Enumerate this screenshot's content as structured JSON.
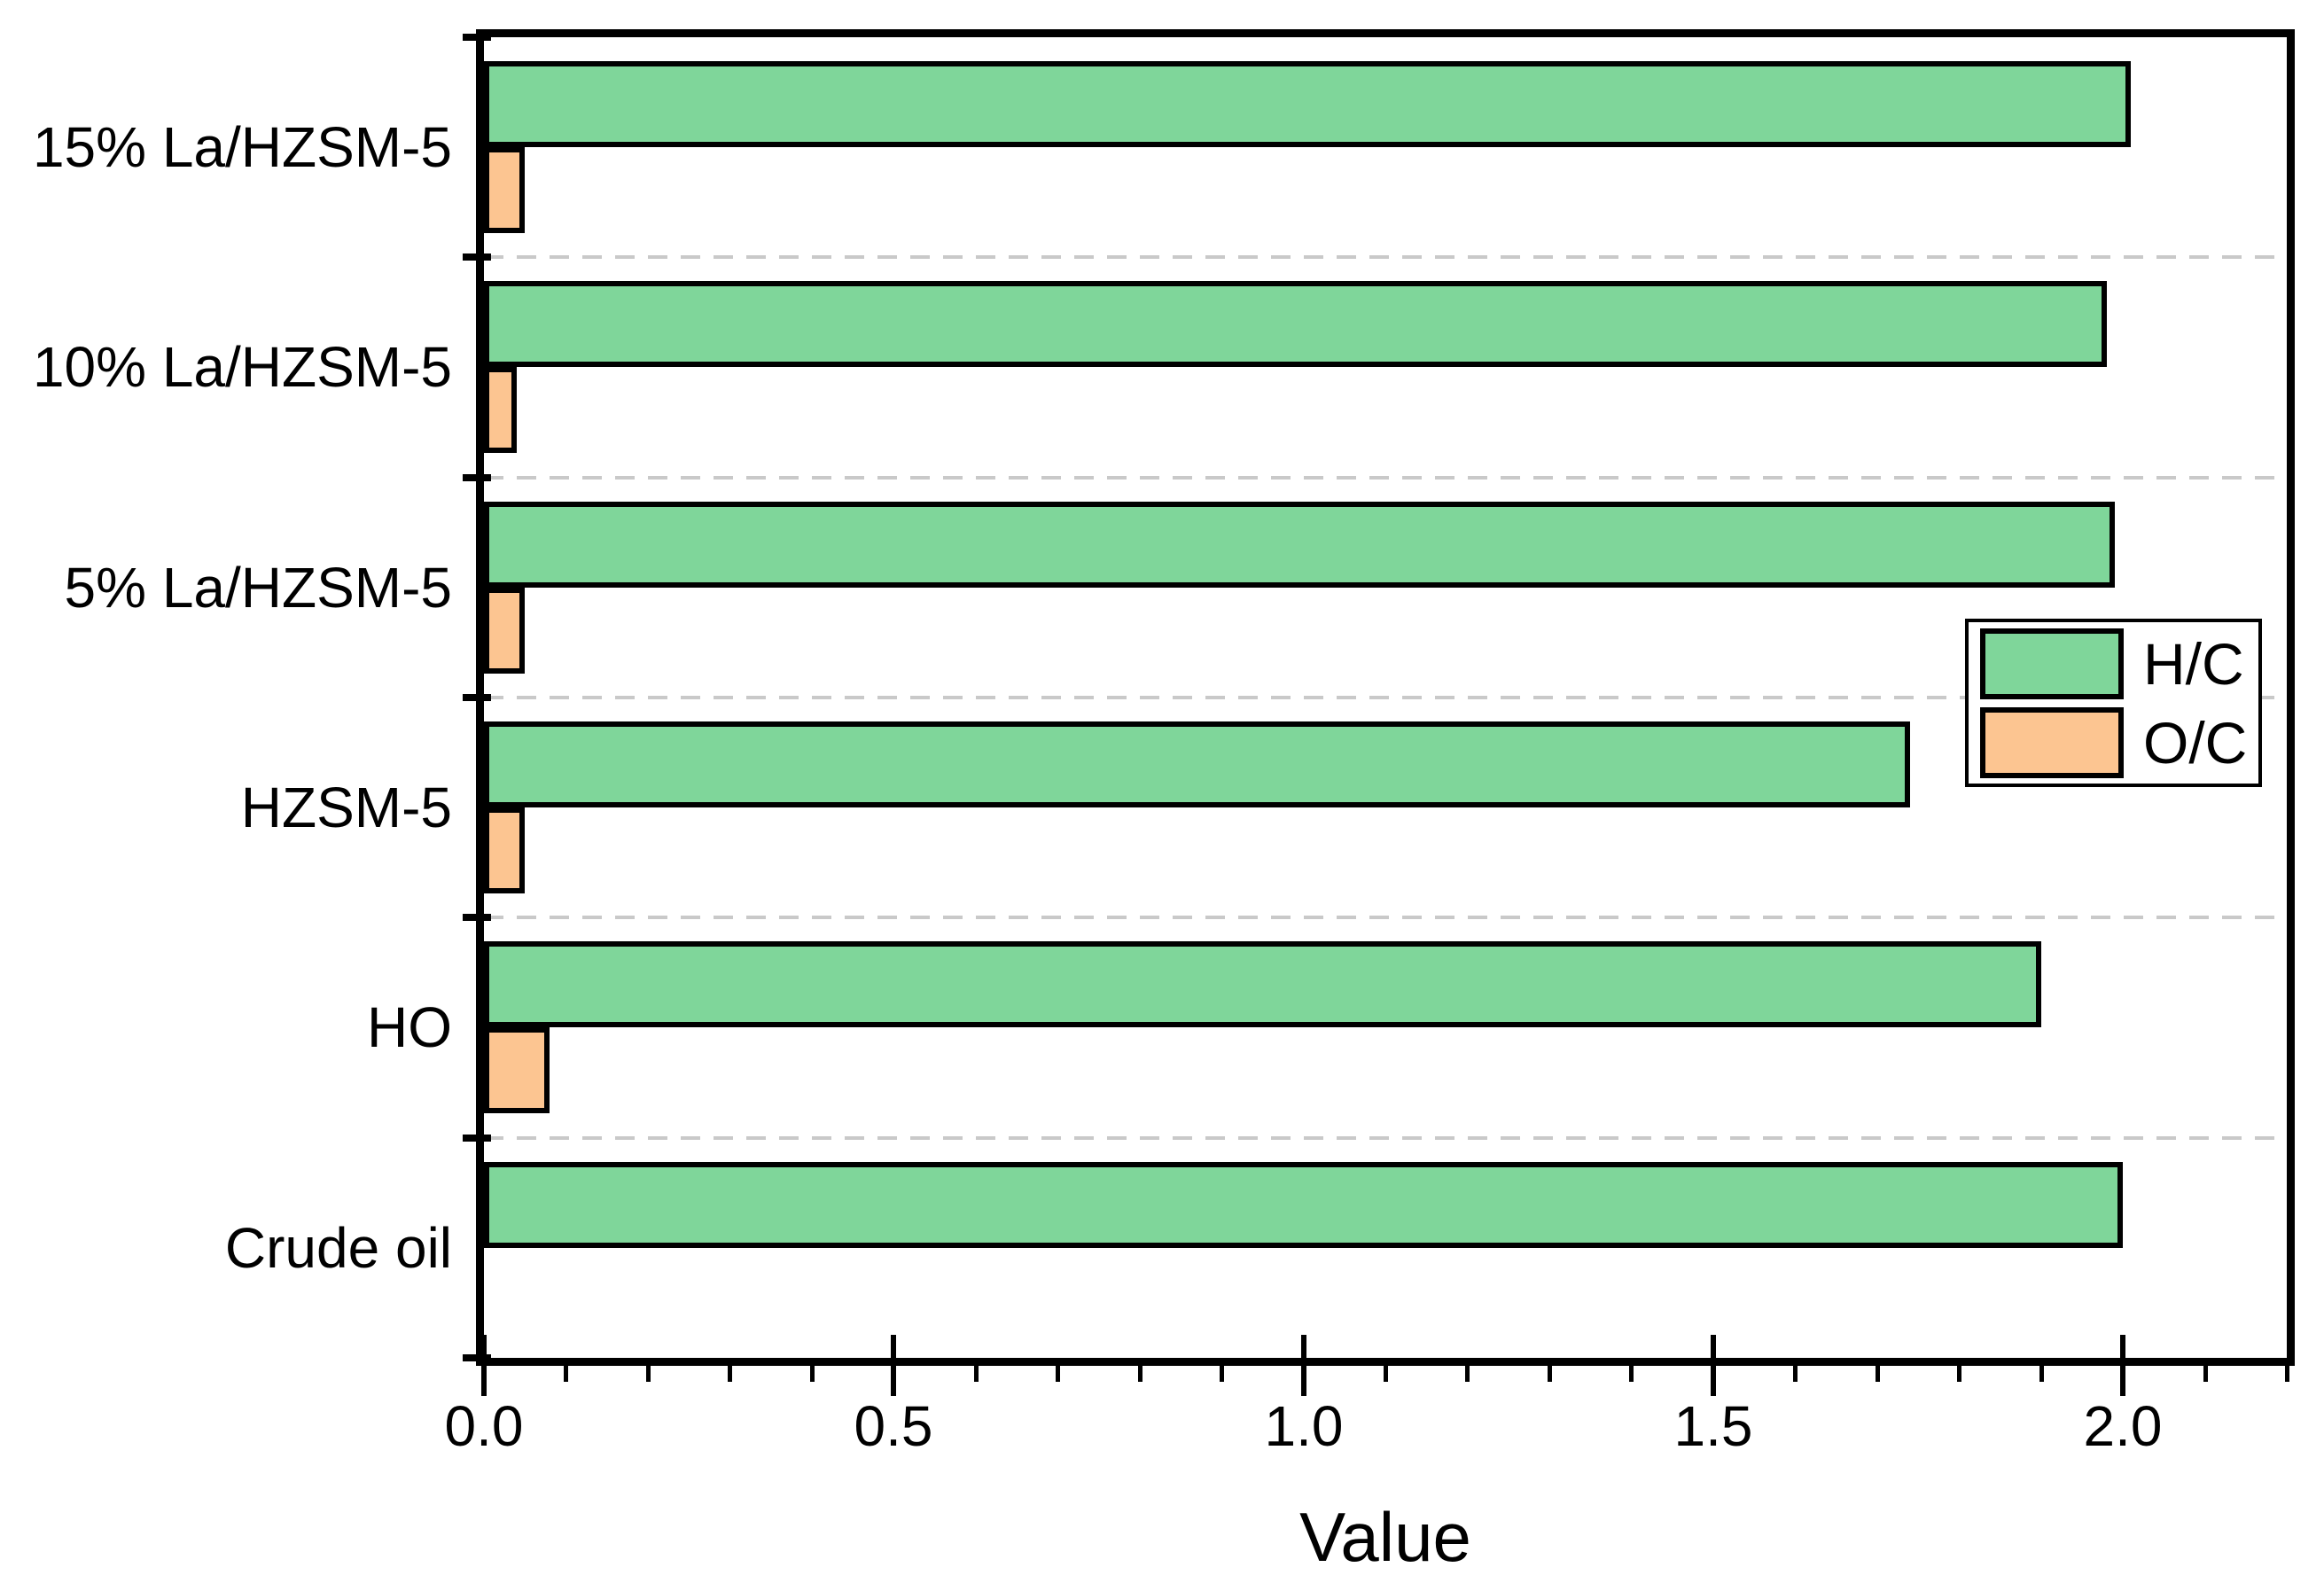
{
  "chart_data": {
    "type": "bar",
    "orientation": "horizontal",
    "title": "",
    "xlabel": "Value",
    "ylabel": "",
    "categories": [
      "15% La/HZSM-5",
      "10% La/HZSM-5",
      "5% La/HZSM-5",
      "HZSM-5",
      "HO",
      "Crude oil"
    ],
    "series": [
      {
        "name": "H/C",
        "color": "#7FD69A",
        "values": [
          2.01,
          1.98,
          1.99,
          1.74,
          1.9,
          2.0
        ]
      },
      {
        "name": "O/C",
        "color": "#FCC591",
        "values": [
          0.05,
          0.04,
          0.05,
          0.05,
          0.08,
          0
        ]
      }
    ],
    "xlim": [
      0,
      2.2
    ],
    "x_major_ticks": [
      0,
      0.5,
      1.0,
      1.5,
      2.0
    ],
    "x_tick_labels": [
      "0.0",
      "0.5",
      "1.0",
      "1.5",
      "2.0"
    ],
    "x_minor_tick_step": 0.1,
    "grid": "dashed-horizontal-category-separators",
    "gridline_color": "#C9C9C9",
    "bar_border_color": "#000000",
    "frame_color": "#000000",
    "legend_position": "middle-right",
    "legend_entries": [
      "H/C",
      "O/C"
    ]
  }
}
